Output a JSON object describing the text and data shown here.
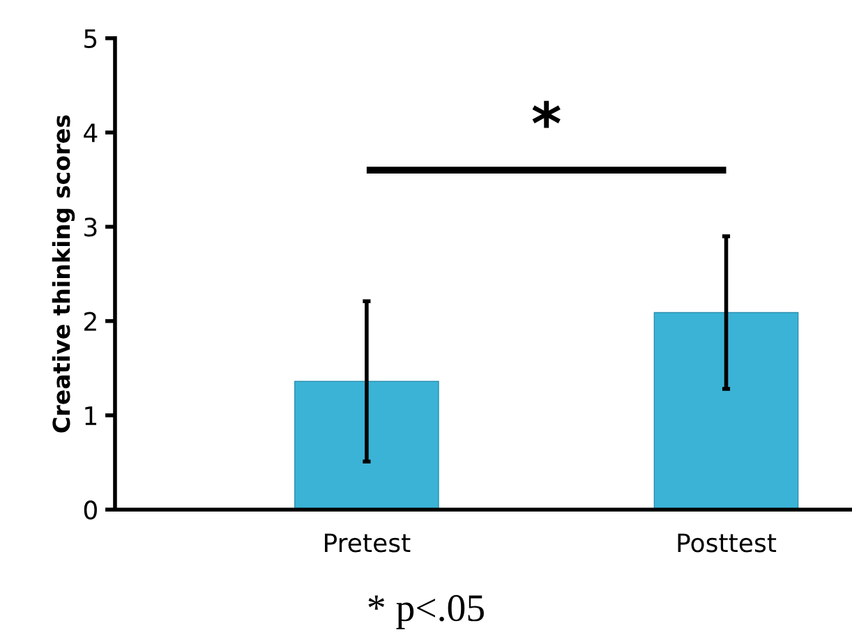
{
  "chart_data": {
    "type": "bar",
    "ylabel": "Creative thinking scores",
    "categories": [
      "Pretest",
      "Posttest"
    ],
    "values": [
      1.36,
      2.09
    ],
    "errors": [
      0.85,
      0.81
    ],
    "color": "#3bb3d6",
    "ylim": [
      0,
      5
    ],
    "yticks": [
      0,
      1,
      2,
      3,
      4,
      5
    ],
    "grid": false,
    "annotations": [
      "*",
      "* p<.05"
    ]
  }
}
